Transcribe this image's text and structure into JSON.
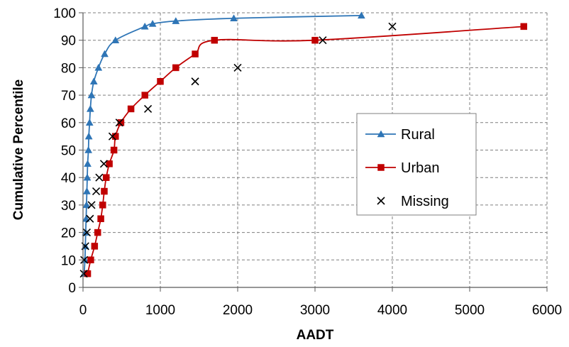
{
  "chart_data": {
    "type": "line",
    "title": "",
    "xlabel": "AADT",
    "ylabel": "Cumulative Percentile",
    "xlim": [
      0,
      6000
    ],
    "ylim": [
      0,
      100
    ],
    "x_ticks": [
      0,
      1000,
      2000,
      3000,
      4000,
      5000,
      6000
    ],
    "y_ticks": [
      0,
      10,
      20,
      30,
      40,
      50,
      60,
      70,
      80,
      90,
      100
    ],
    "grid": true,
    "legend_position": "center-right",
    "series": [
      {
        "name": "Rural",
        "color": "#2E75B6",
        "marker": "triangle",
        "line": true,
        "points": [
          [
            15,
            5
          ],
          [
            25,
            10
          ],
          [
            30,
            15
          ],
          [
            35,
            20
          ],
          [
            40,
            25
          ],
          [
            45,
            30
          ],
          [
            50,
            35
          ],
          [
            55,
            40
          ],
          [
            60,
            45
          ],
          [
            70,
            50
          ],
          [
            75,
            55
          ],
          [
            85,
            60
          ],
          [
            95,
            65
          ],
          [
            110,
            70
          ],
          [
            140,
            75
          ],
          [
            200,
            80
          ],
          [
            280,
            85
          ],
          [
            420,
            90
          ],
          [
            800,
            95
          ],
          [
            900,
            96
          ],
          [
            1200,
            97
          ],
          [
            1950,
            98
          ],
          [
            3600,
            99
          ]
        ]
      },
      {
        "name": "Urban",
        "color": "#C00000",
        "marker": "square",
        "line": true,
        "points": [
          [
            60,
            5
          ],
          [
            100,
            10
          ],
          [
            150,
            15
          ],
          [
            190,
            20
          ],
          [
            230,
            25
          ],
          [
            255,
            30
          ],
          [
            275,
            35
          ],
          [
            300,
            40
          ],
          [
            340,
            45
          ],
          [
            400,
            50
          ],
          [
            420,
            55
          ],
          [
            490,
            60
          ],
          [
            620,
            65
          ],
          [
            800,
            70
          ],
          [
            1000,
            75
          ],
          [
            1200,
            80
          ],
          [
            1450,
            85
          ],
          [
            1700,
            90
          ],
          [
            3000,
            90
          ],
          [
            5700,
            95
          ]
        ]
      },
      {
        "name": "Missing",
        "color": "#000000",
        "marker": "x",
        "line": false,
        "points": [
          [
            10,
            5
          ],
          [
            15,
            10
          ],
          [
            30,
            15
          ],
          [
            50,
            20
          ],
          [
            90,
            25
          ],
          [
            110,
            30
          ],
          [
            170,
            35
          ],
          [
            210,
            40
          ],
          [
            270,
            45
          ],
          [
            380,
            55
          ],
          [
            470,
            60
          ],
          [
            840,
            65
          ],
          [
            1450,
            75
          ],
          [
            2000,
            80
          ],
          [
            3100,
            90
          ],
          [
            4000,
            95
          ]
        ]
      }
    ]
  }
}
